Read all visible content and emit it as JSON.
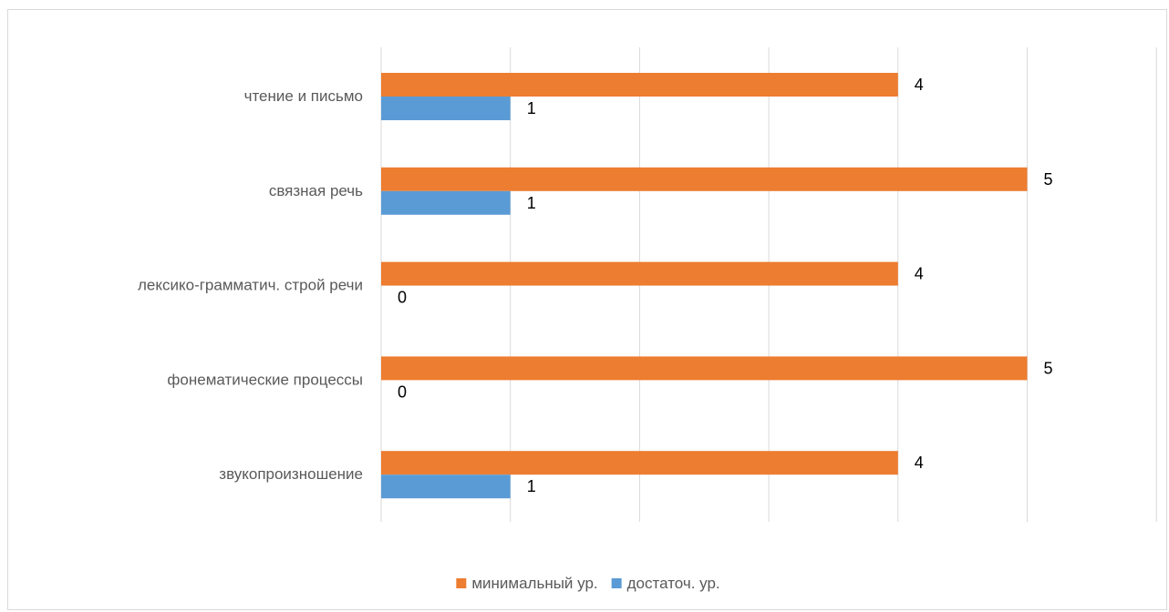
{
  "chart_data": {
    "type": "bar",
    "orientation": "horizontal",
    "categories": [
      "чтение и письмо",
      "связная речь",
      "лексико-грамматич. строй речи",
      "фонематические процессы",
      "звукопроизношение"
    ],
    "series": [
      {
        "name": "минимальный ур.",
        "color": "#ED7D31",
        "values": [
          4,
          5,
          4,
          5,
          4
        ]
      },
      {
        "name": "достаточ. ур.",
        "color": "#5B9BD5",
        "values": [
          1,
          1,
          0,
          0,
          1
        ]
      }
    ],
    "xlim": [
      0,
      6
    ],
    "grid": true,
    "legend": "bottom",
    "data_labels": true
  }
}
